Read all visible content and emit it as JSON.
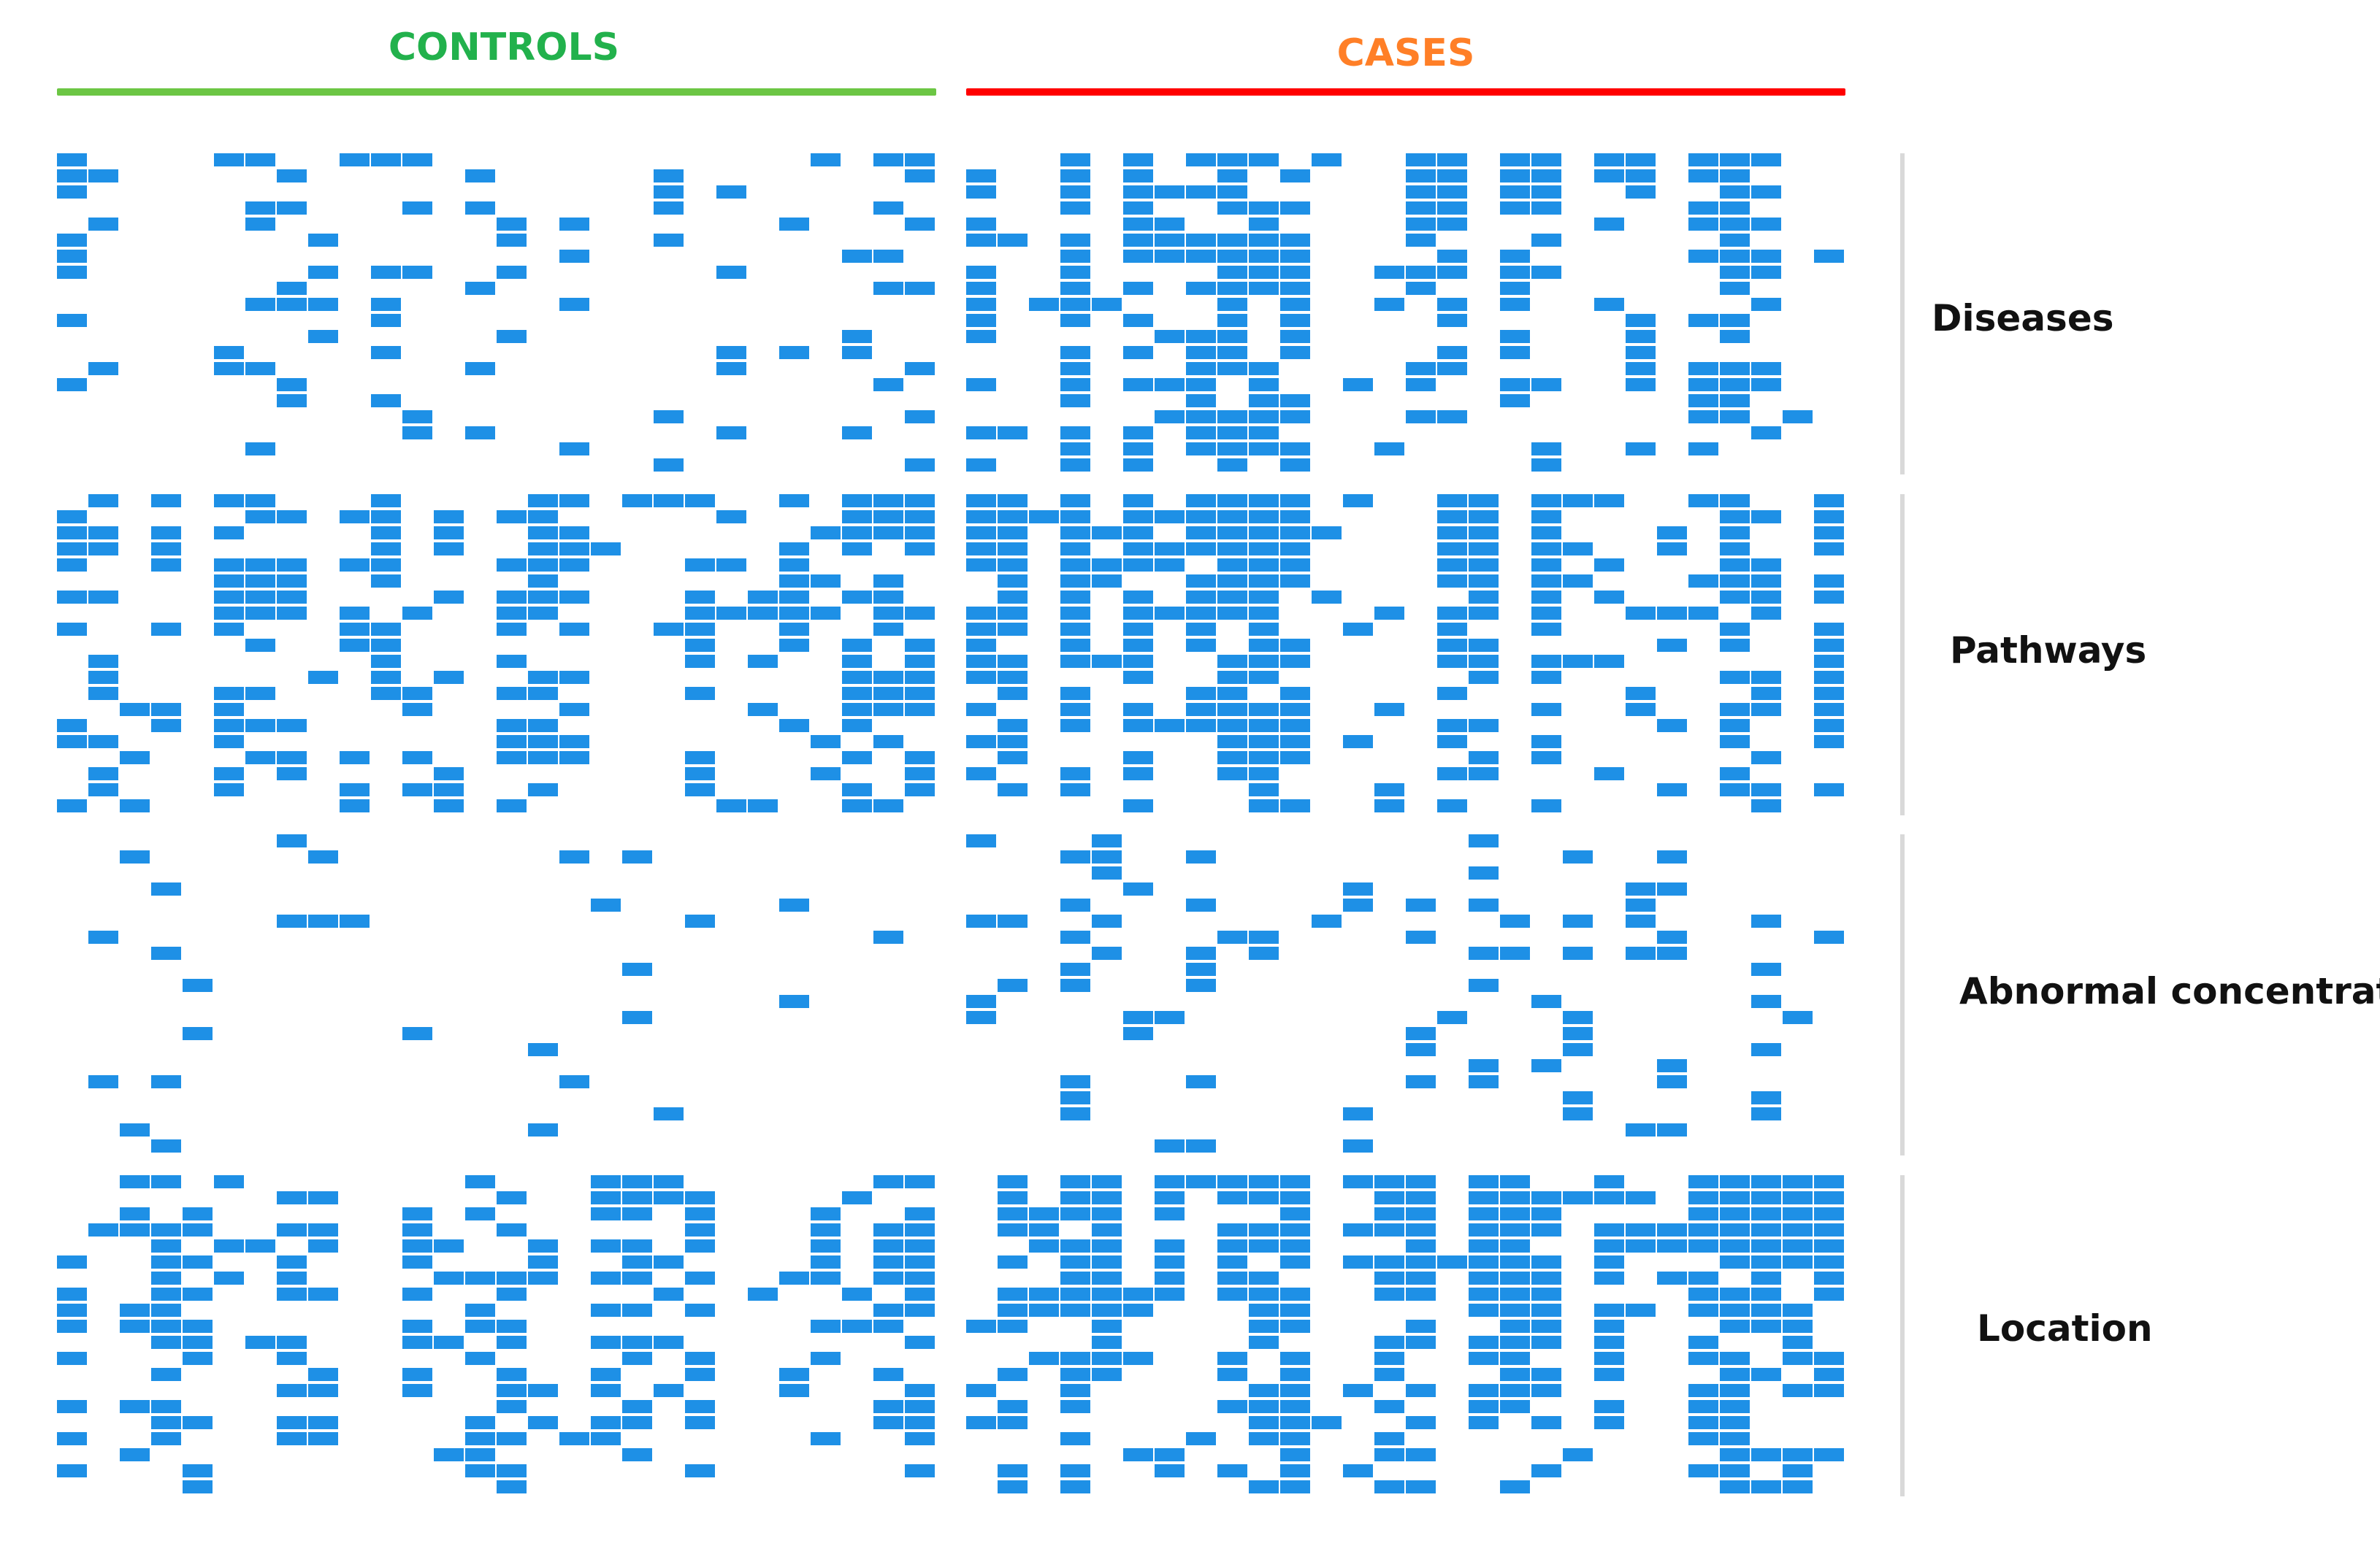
{
  "colors": {
    "cell": "#1e90e6",
    "controls": "#22b14c",
    "cases": "#ff7f27",
    "controls_bar": "#6cc644",
    "cases_bar": "#ff0000",
    "separator": "#d9d9d9"
  },
  "header": {
    "controls_label": "CONTROLS",
    "cases_label": "CASES"
  },
  "chart_data": {
    "type": "heatmap",
    "title": "",
    "xlabel": "",
    "ylabel": "",
    "columns_per_group": 28,
    "groups": [
      {
        "name": "CONTROLS",
        "columns": 28
      },
      {
        "name": "CASES",
        "columns": 28
      }
    ],
    "categories": [
      {
        "name": "Diseases",
        "rows": 20,
        "density": {
          "controls": 0.17,
          "cases": 0.46
        }
      },
      {
        "name": "Pathways",
        "rows": 20,
        "density": {
          "controls": 0.34,
          "cases": 0.62
        }
      },
      {
        "name": "Abnormal concentration",
        "rows": 20,
        "density": {
          "controls": 0.05,
          "cases": 0.16
        }
      },
      {
        "name": "Location",
        "rows": 20,
        "density": {
          "controls": 0.31,
          "cases": 0.58
        }
      }
    ]
  }
}
